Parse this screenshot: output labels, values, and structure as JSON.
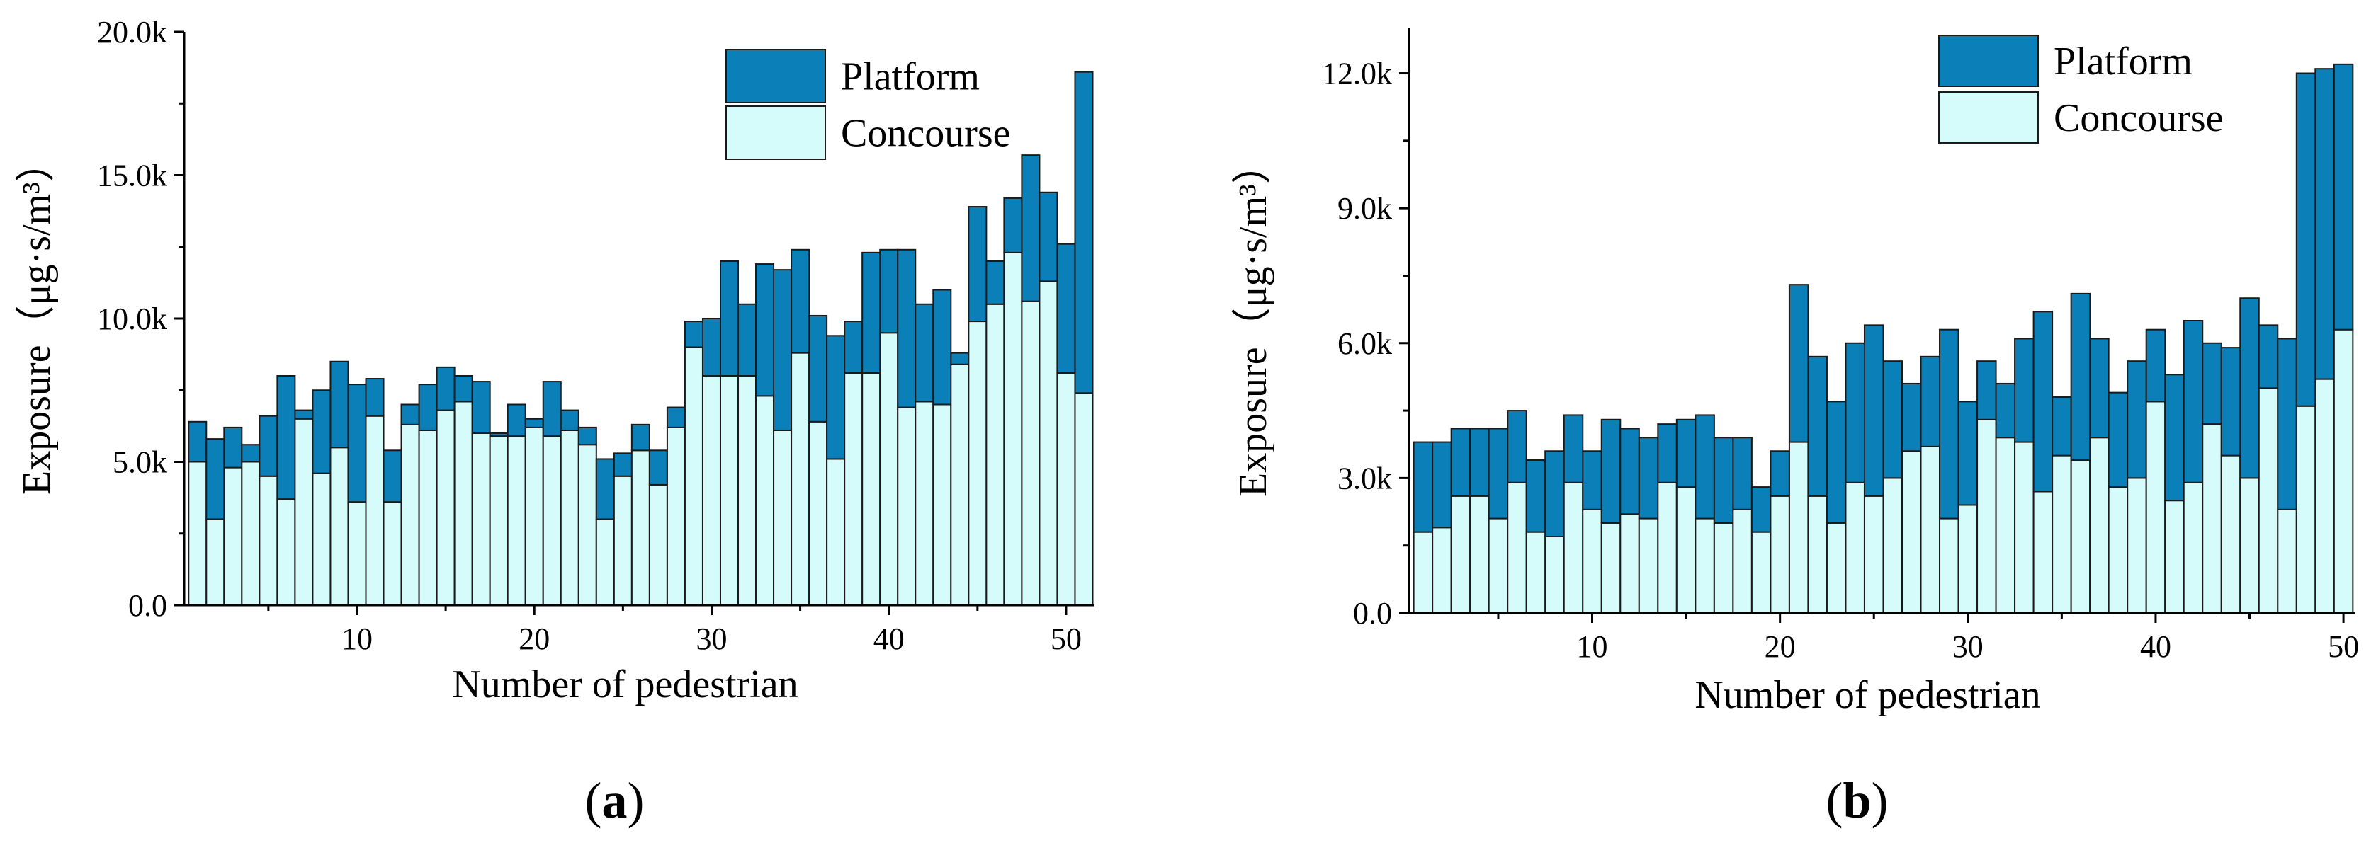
{
  "colors": {
    "platform": "#0a7fb8",
    "concourse": "#d6fbfb",
    "edge": "#1a1a1a"
  },
  "chart_data": [
    {
      "type": "bar",
      "stacked": true,
      "panel_label": "a",
      "xlabel": "Number of pedestrian",
      "ylabel": "Exposure",
      "ylabel_unit": "（μg·s/m³）",
      "ylim": [
        0,
        20000
      ],
      "y_ticks": [
        0,
        5000,
        10000,
        15000,
        20000
      ],
      "y_tick_labels": [
        "0.0",
        "5.0k",
        "10.0k",
        "15.0k",
        "20.0k"
      ],
      "x_ticks": [
        10,
        20,
        30,
        40,
        50
      ],
      "x_tick_labels": [
        "10",
        "20",
        "30",
        "40",
        "50"
      ],
      "legend_position": "top-right",
      "x": [
        1,
        2,
        3,
        4,
        5,
        6,
        7,
        8,
        9,
        10,
        11,
        12,
        13,
        14,
        15,
        16,
        17,
        18,
        19,
        20,
        21,
        22,
        23,
        24,
        25,
        26,
        27,
        28,
        29,
        30,
        31,
        32,
        33,
        34,
        35,
        36,
        37,
        38,
        39,
        40,
        41,
        42,
        43,
        44,
        45,
        46,
        47,
        48,
        49,
        50,
        51
      ],
      "series": [
        {
          "name": "Concourse",
          "values": [
            5000,
            3000,
            4800,
            5000,
            4500,
            3700,
            6500,
            4600,
            5500,
            3600,
            6600,
            3600,
            6300,
            6100,
            6800,
            7100,
            6000,
            5900,
            5900,
            6200,
            5900,
            6100,
            5600,
            3000,
            4500,
            5400,
            4200,
            6200,
            9000,
            8000,
            8000,
            8000,
            7300,
            6100,
            8800,
            6400,
            5100,
            8100,
            8100,
            9500,
            6900,
            7100,
            7000,
            8400,
            9900,
            10500,
            12300,
            10600,
            11300,
            8100,
            7400
          ]
        },
        {
          "name": "Platform",
          "values": [
            1400,
            2800,
            1400,
            600,
            2100,
            4300,
            300,
            2900,
            3000,
            4100,
            1300,
            1800,
            700,
            1600,
            1500,
            900,
            1800,
            100,
            1100,
            300,
            1900,
            700,
            600,
            2100,
            800,
            900,
            1200,
            700,
            900,
            2000,
            4000,
            2500,
            4600,
            5600,
            3600,
            3700,
            4300,
            1800,
            4200,
            2900,
            5500,
            3400,
            4000,
            400,
            4000,
            1500,
            1900,
            5100,
            3100,
            4500,
            11200
          ]
        }
      ],
      "legend": [
        "Platform",
        "Concourse"
      ]
    },
    {
      "type": "bar",
      "stacked": true,
      "panel_label": "b",
      "xlabel": "Number of pedestrian",
      "ylabel": "Exposure",
      "ylabel_unit": "（μg·s/m³）",
      "ylim": [
        0,
        13000
      ],
      "y_ticks": [
        0,
        3000,
        6000,
        9000,
        12000
      ],
      "y_tick_labels": [
        "0.0",
        "3.0k",
        "6.0k",
        "9.0k",
        "12.0k"
      ],
      "x_ticks": [
        10,
        20,
        30,
        40,
        50
      ],
      "x_tick_labels": [
        "10",
        "20",
        "30",
        "40",
        "50"
      ],
      "legend_position": "top-right",
      "x": [
        1,
        2,
        3,
        4,
        5,
        6,
        7,
        8,
        9,
        10,
        11,
        12,
        13,
        14,
        15,
        16,
        17,
        18,
        19,
        20,
        21,
        22,
        23,
        24,
        25,
        26,
        27,
        28,
        29,
        30,
        31,
        32,
        33,
        34,
        35,
        36,
        37,
        38,
        39,
        40,
        41,
        42,
        43,
        44,
        45,
        46,
        47,
        48,
        49,
        50
      ],
      "series": [
        {
          "name": "Concourse",
          "values": [
            1800,
            1900,
            2600,
            2600,
            2100,
            2900,
            1800,
            1700,
            2900,
            2300,
            2000,
            2200,
            2100,
            2900,
            2800,
            2100,
            2000,
            2300,
            1800,
            2600,
            3800,
            2600,
            2000,
            2900,
            2600,
            3000,
            3600,
            3700,
            2100,
            2400,
            4300,
            3900,
            3800,
            2700,
            3500,
            3400,
            3900,
            2800,
            3000,
            4700,
            2500,
            2900,
            4200,
            3500,
            3000,
            5000,
            2300,
            4600,
            5200,
            6300
          ]
        },
        {
          "name": "Platform",
          "values": [
            2000,
            1900,
            1500,
            1500,
            2000,
            1600,
            1600,
            1900,
            1500,
            1300,
            2300,
            1900,
            1800,
            1300,
            1500,
            2300,
            1900,
            1600,
            1000,
            1000,
            3500,
            3100,
            2700,
            3100,
            3800,
            2600,
            1500,
            2000,
            4200,
            2300,
            1300,
            1200,
            2300,
            4000,
            1300,
            3700,
            2200,
            2100,
            2600,
            1600,
            2800,
            3600,
            1800,
            2400,
            4000,
            1400,
            3800,
            7400,
            6900,
            5900
          ]
        }
      ],
      "legend": [
        "Platform",
        "Concourse"
      ]
    }
  ]
}
